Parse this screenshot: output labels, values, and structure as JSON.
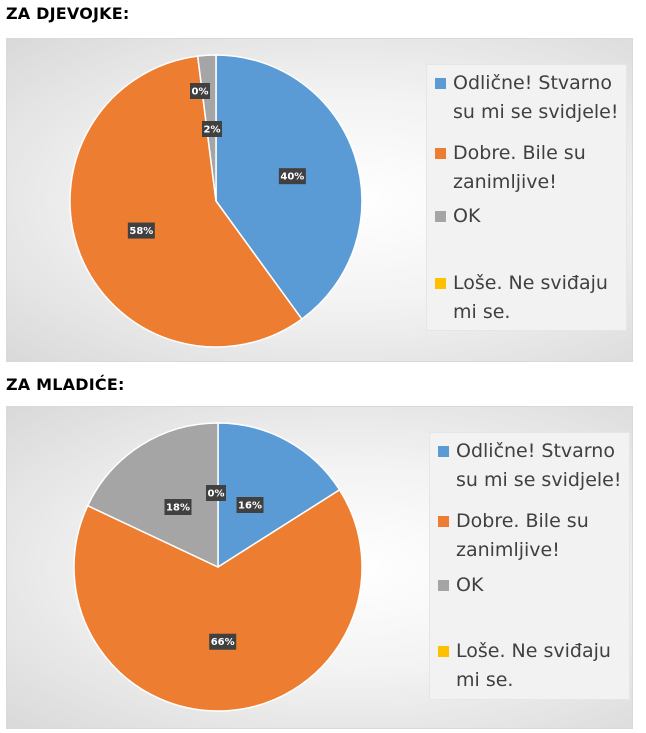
{
  "sections": [
    {
      "title": "ZA DJEVOJKE:",
      "chart_data": {
        "type": "pie",
        "categories": [
          "Odlične! Stvarno su mi se svidjele!",
          "Dobre. Bile su zanimljive!",
          "OK",
          "Loše. Ne sviđaju mi se."
        ],
        "values": [
          40,
          58,
          2,
          0
        ],
        "data_labels": [
          "40%",
          "58%",
          "2%",
          "0%"
        ],
        "colors": [
          "#5b9bd5",
          "#ed7d31",
          "#a5a5a5",
          "#ffc000"
        ],
        "legend_position": "right"
      }
    },
    {
      "title": "ZA MLADIĆE:",
      "chart_data": {
        "type": "pie",
        "categories": [
          "Odlične! Stvarno su mi se svidjele!",
          "Dobre. Bile su zanimljive!",
          "OK",
          "Loše. Ne sviđaju mi se."
        ],
        "values": [
          16,
          66,
          18,
          0
        ],
        "data_labels": [
          "16%",
          "66%",
          "18%",
          "0%"
        ],
        "colors": [
          "#5b9bd5",
          "#ed7d31",
          "#a5a5a5",
          "#ffc000"
        ],
        "legend_position": "right"
      }
    }
  ]
}
